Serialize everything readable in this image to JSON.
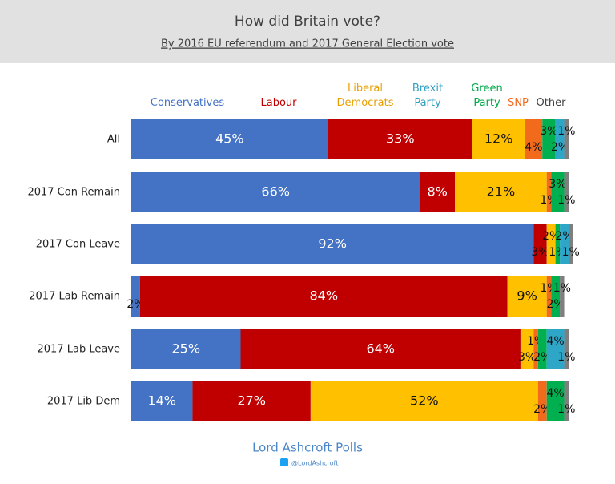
{
  "chart_data": {
    "type": "bar",
    "orientation": "horizontal",
    "stacked": true,
    "title": "How did Britain vote?",
    "subtitle": "By 2016 EU referendum and 2017 General Election vote",
    "categories": [
      "All",
      "2017 Con Remain",
      "2017 Con Leave",
      "2017 Lab Remain",
      "2017 Lab Leave",
      "2017 Lib Dem"
    ],
    "xlim": [
      0,
      100
    ],
    "series": [
      {
        "name": "Conservatives",
        "color": "#4472c4",
        "values": [
          45,
          66,
          92,
          2,
          25,
          14
        ],
        "value_labels": [
          "45%",
          "66%",
          "92%",
          "2%",
          "25%",
          "14%"
        ]
      },
      {
        "name": "Labour",
        "color": "#c00000",
        "values": [
          33,
          8,
          3,
          84,
          64,
          27
        ],
        "value_labels": [
          "33%",
          "8%",
          "3%",
          "84%",
          "64%",
          "27%"
        ]
      },
      {
        "name": "Liberal Democrats",
        "color": "#ffc000",
        "values": [
          12,
          21,
          2,
          9,
          3,
          52
        ],
        "value_labels": [
          "12%",
          "21%",
          "2%",
          "9%",
          "3%",
          "52%"
        ]
      },
      {
        "name": "Brexit Party",
        "color": "#2ea6c8",
        "values": [
          2,
          0,
          2,
          0,
          4,
          0
        ],
        "value_labels": [
          "2%",
          null,
          "2%",
          null,
          "4%",
          null
        ]
      },
      {
        "name": "Green Party",
        "color": "#00b050",
        "values": [
          3,
          3,
          1,
          2,
          2,
          4
        ],
        "value_labels": [
          "3%",
          "3%",
          "1%",
          "2%",
          "2%",
          "4%"
        ]
      },
      {
        "name": "SNP",
        "color": "#f26b1d",
        "values": [
          4,
          1,
          0,
          1,
          1,
          2
        ],
        "value_labels": [
          "4%",
          "1%",
          null,
          "1%",
          "1%",
          "2%"
        ]
      },
      {
        "name": "Other",
        "color": "#7f7f7f",
        "values": [
          1,
          1,
          1,
          1,
          1,
          1
        ],
        "value_labels": [
          "1%",
          "1%",
          "1%",
          "1%",
          "1%",
          "1%"
        ]
      }
    ],
    "source": "Lord Ashcroft Polls",
    "handle": "@LordAshcroft"
  }
}
